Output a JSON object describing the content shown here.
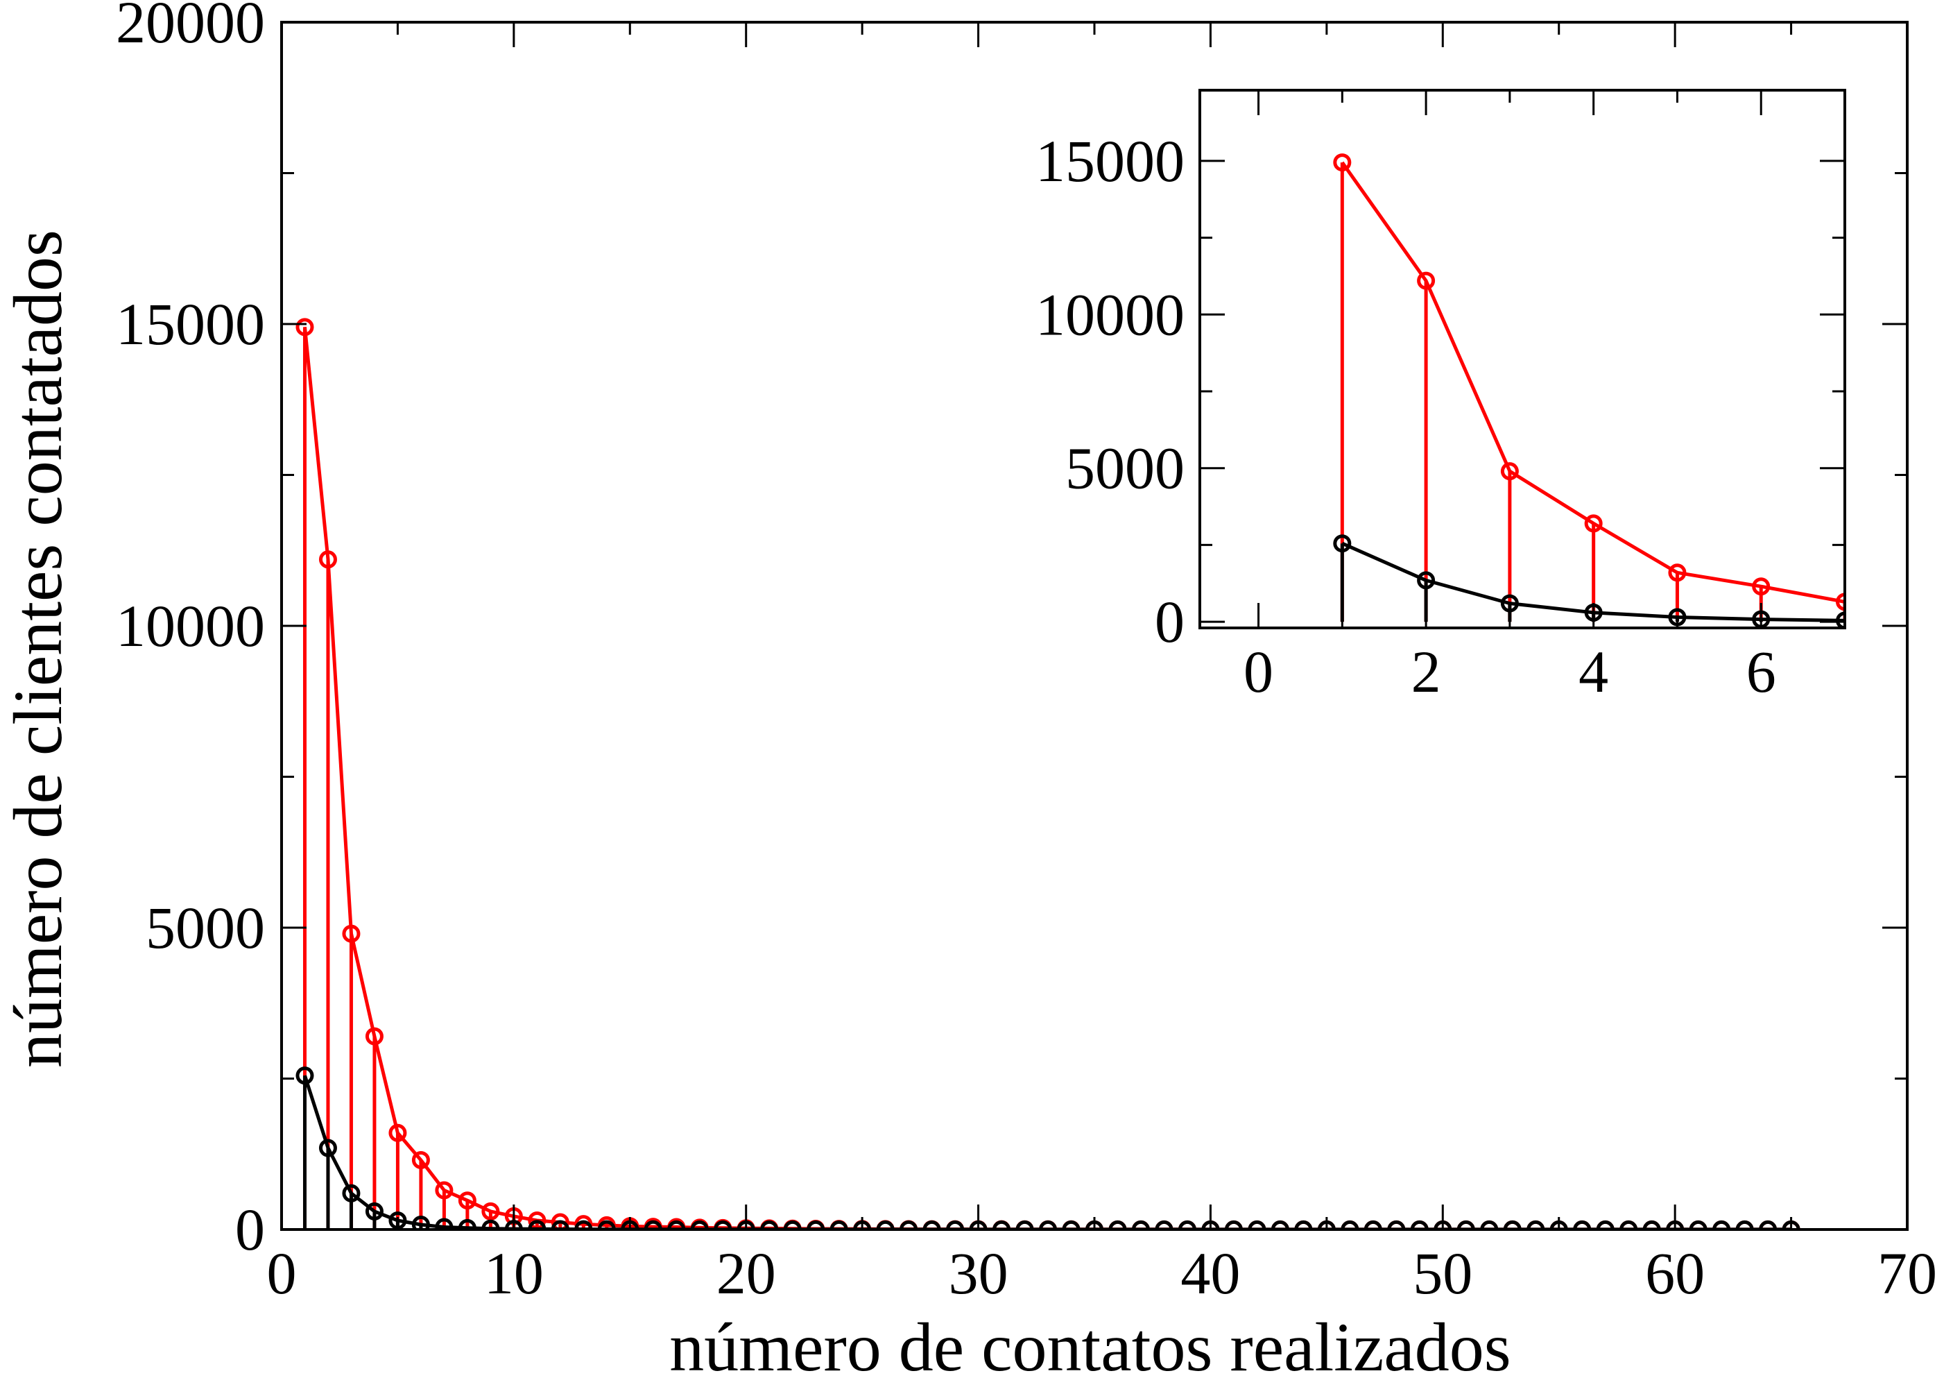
{
  "chart_data": [
    {
      "type": "line",
      "panel": "main",
      "xlabel": "número de contatos realizados",
      "ylabel": "número de clientes contatados",
      "xlim": [
        0,
        70
      ],
      "ylim": [
        0,
        20000
      ],
      "x_ticks": [
        0,
        10,
        20,
        30,
        40,
        50,
        60,
        70
      ],
      "y_ticks": [
        0,
        5000,
        10000,
        15000,
        20000
      ],
      "x_tick_labels": [
        "0",
        "10",
        "20",
        "30",
        "40",
        "50",
        "60",
        "70"
      ],
      "y_tick_labels": [
        "0",
        "5000",
        "10000",
        "15000",
        "20000"
      ],
      "grid": false,
      "markers": "open-circle",
      "drop_lines": true,
      "series": [
        {
          "color": "#ff0000",
          "x": [
            1,
            2,
            3,
            4,
            5,
            6,
            7,
            8,
            9,
            10,
            11,
            12,
            13,
            14,
            15,
            16,
            17,
            18,
            19,
            20,
            21,
            22,
            23,
            24,
            25,
            26,
            27,
            28,
            29,
            30,
            31,
            32,
            33,
            34,
            35,
            36,
            37,
            38,
            39,
            40,
            41,
            42,
            43,
            44,
            45,
            46,
            47,
            48,
            49,
            50,
            51,
            52,
            53,
            54,
            55,
            56,
            57,
            58,
            59,
            60,
            61,
            62,
            63,
            64,
            65
          ],
          "y": [
            14950,
            11100,
            4900,
            3200,
            1600,
            1150,
            650,
            480,
            300,
            220,
            150,
            120,
            90,
            70,
            55,
            45,
            40,
            30,
            25,
            20,
            18,
            15,
            12,
            10,
            8,
            7,
            6,
            5,
            5,
            4,
            4,
            3,
            3,
            3,
            2,
            2,
            2,
            2,
            2,
            1,
            1,
            1,
            1,
            1,
            1,
            1,
            1,
            1,
            1,
            1,
            1,
            1,
            1,
            1,
            1,
            1,
            1,
            1,
            1,
            1,
            1,
            1,
            1,
            1,
            1
          ]
        },
        {
          "color": "#000000",
          "x": [
            1,
            2,
            3,
            4,
            5,
            6,
            7,
            8,
            9,
            10,
            11,
            12,
            13,
            14,
            15,
            16,
            17,
            18,
            19,
            20,
            21,
            22,
            23,
            24,
            25,
            26,
            27,
            28,
            29,
            30,
            31,
            32,
            33,
            34,
            35,
            36,
            37,
            38,
            39,
            40,
            41,
            42,
            43,
            44,
            45,
            46,
            47,
            48,
            49,
            50,
            51,
            52,
            53,
            54,
            55,
            56,
            57,
            58,
            59,
            60,
            61,
            62,
            63,
            64,
            65
          ],
          "y": [
            2550,
            1350,
            600,
            300,
            150,
            80,
            40,
            25,
            15,
            10,
            8,
            6,
            5,
            4,
            3,
            3,
            2,
            2,
            2,
            2,
            1,
            1,
            1,
            1,
            1,
            1,
            1,
            1,
            1,
            1,
            1,
            1,
            1,
            1,
            1,
            1,
            1,
            1,
            1,
            1,
            1,
            1,
            1,
            1,
            1,
            1,
            1,
            1,
            1,
            1,
            1,
            1,
            1,
            1,
            1,
            1,
            1,
            1,
            1,
            1,
            1,
            1,
            1,
            1,
            1
          ]
        }
      ]
    },
    {
      "type": "line",
      "panel": "inset",
      "xlim": [
        -0.7,
        7
      ],
      "ylim": [
        -200,
        17300
      ],
      "x_ticks": [
        0,
        2,
        4,
        6
      ],
      "y_ticks": [
        0,
        5000,
        10000,
        15000
      ],
      "x_tick_labels": [
        "0",
        "2",
        "4",
        "6"
      ],
      "y_tick_labels": [
        "0",
        "5000",
        "10000",
        "15000"
      ],
      "grid": false,
      "markers": "open-circle",
      "drop_lines": true,
      "series": [
        {
          "color": "#ff0000",
          "x": [
            1,
            2,
            3,
            4,
            5,
            6,
            7
          ],
          "y": [
            14950,
            11100,
            4900,
            3200,
            1600,
            1150,
            650
          ]
        },
        {
          "color": "#000000",
          "x": [
            1,
            2,
            3,
            4,
            5,
            6,
            7
          ],
          "y": [
            2550,
            1350,
            600,
            300,
            150,
            80,
            40
          ]
        }
      ]
    }
  ]
}
